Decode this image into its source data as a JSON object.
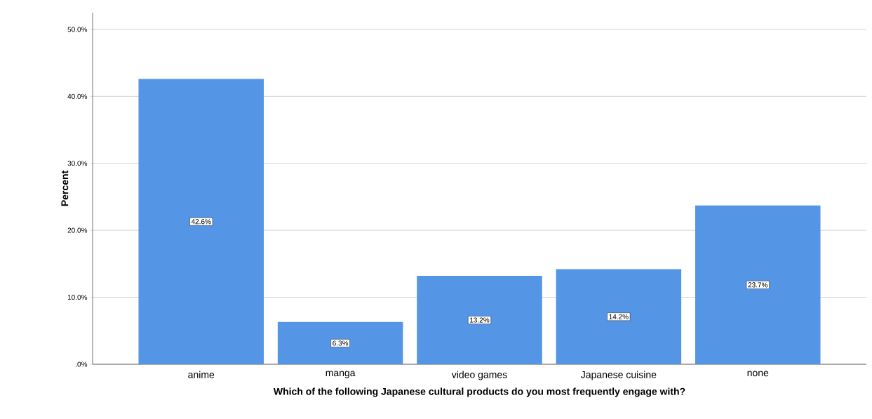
{
  "chart_data": {
    "type": "bar",
    "xlabel": "Which of the following Japanese cultural products do you most frequently engage with?",
    "ylabel": "Percent",
    "categories": [
      "anime",
      "manga",
      "video games",
      "Japanese cuisine",
      "none"
    ],
    "values": [
      42.6,
      6.3,
      13.2,
      14.2,
      23.7
    ],
    "value_labels": [
      "42.6%",
      "6.3%",
      "13.2%",
      "14.2%",
      "23.7%"
    ],
    "color": "#5595e5",
    "ylim": [
      0,
      52.5
    ],
    "yticks": [
      {
        "value": 0,
        "label": ".0%"
      },
      {
        "value": 10,
        "label": "10.0%"
      },
      {
        "value": 20,
        "label": "20.0%"
      },
      {
        "value": 30,
        "label": "30.0%"
      },
      {
        "value": 40,
        "label": "40.0%"
      },
      {
        "value": 50,
        "label": "50.0%"
      }
    ],
    "grid": "y"
  }
}
